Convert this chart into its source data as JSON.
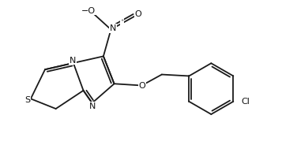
{
  "bg_color": "#ffffff",
  "line_color": "#1a1a1a",
  "lw": 1.3,
  "fs": 7.5,
  "figsize": [
    3.57,
    1.84
  ],
  "dpi": 100,
  "xlim": [
    0,
    10.5
  ],
  "ylim": [
    0,
    5.8
  ],
  "scale": 1.0
}
